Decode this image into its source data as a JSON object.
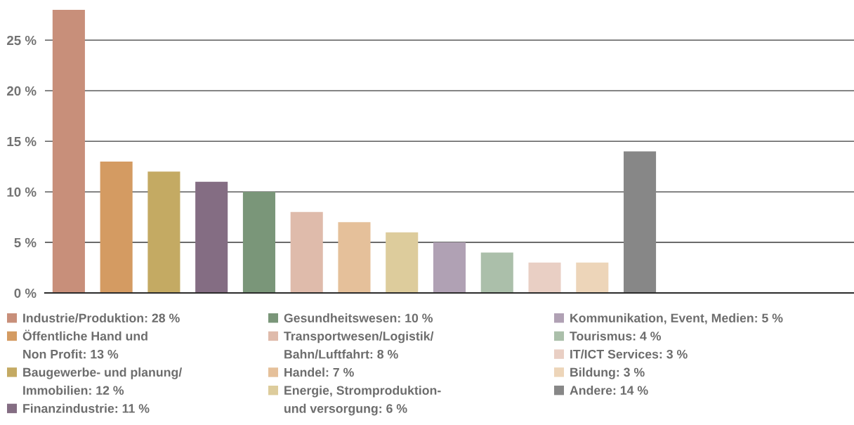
{
  "chart_data": {
    "type": "bar",
    "categories": [
      null,
      null,
      null,
      null,
      null,
      null,
      null,
      null,
      null,
      null,
      null,
      null,
      null,
      null,
      null,
      null,
      null
    ],
    "series": [
      {
        "name": "Industrie/Produktion: 28 %",
        "color": "#c88f7a",
        "values": [
          28,
          null,
          null,
          null,
          null,
          null,
          null,
          null,
          null,
          null,
          null,
          null,
          null,
          null,
          null,
          null,
          null
        ]
      },
      {
        "name": "Öffentliche Hand und\nNon Profit: 13 %",
        "color": "#d49b62",
        "values": [
          null,
          13,
          null,
          null,
          null,
          null,
          null,
          null,
          null,
          null,
          null,
          null,
          null,
          null,
          null,
          null,
          null
        ]
      },
      {
        "name": "Baugewerbe- und planung/\nImmobilien: 12 %",
        "color": "#c4aa63",
        "values": [
          null,
          null,
          12,
          null,
          null,
          null,
          null,
          null,
          null,
          null,
          null,
          null,
          null,
          null,
          null,
          null,
          null
        ]
      },
      {
        "name": "Finanzindustrie: 11 %",
        "color": "#846d83",
        "values": [
          null,
          null,
          null,
          11,
          null,
          null,
          null,
          null,
          null,
          null,
          null,
          null,
          null,
          null,
          null,
          null,
          null
        ]
      },
      {
        "name": "Gesundheitswesen: 10 %",
        "color": "#7a9679",
        "values": [
          null,
          null,
          null,
          null,
          10,
          null,
          null,
          null,
          null,
          null,
          null,
          null,
          null,
          null,
          null,
          null,
          null
        ]
      },
      {
        "name": "Transportwesen/Logistik/\nBahn/Luftfahrt: 8 %",
        "color": "#dfbbab",
        "values": [
          null,
          null,
          null,
          null,
          null,
          8,
          null,
          null,
          null,
          null,
          null,
          null,
          null,
          null,
          null,
          null,
          null
        ]
      },
      {
        "name": "Handel: 7 %",
        "color": "#e5c09a",
        "values": [
          null,
          null,
          null,
          null,
          null,
          null,
          7,
          null,
          null,
          null,
          null,
          null,
          null,
          null,
          null,
          null,
          null
        ]
      },
      {
        "name": "Energie, Stromproduktion-\nund versorgung: 6 %",
        "color": "#ddcc9c",
        "values": [
          null,
          null,
          null,
          null,
          null,
          null,
          null,
          6,
          null,
          null,
          null,
          null,
          null,
          null,
          null,
          null,
          null
        ]
      },
      {
        "name": "Kommunikation, Event, Medien: 5 %",
        "color": "#b0a1b4",
        "values": [
          null,
          null,
          null,
          null,
          null,
          null,
          null,
          null,
          5,
          null,
          null,
          null,
          null,
          null,
          null,
          null,
          null
        ]
      },
      {
        "name": "Tourismus: 4 %",
        "color": "#abbfaa",
        "values": [
          null,
          null,
          null,
          null,
          null,
          null,
          null,
          null,
          null,
          4,
          null,
          null,
          null,
          null,
          null,
          null,
          null
        ]
      },
      {
        "name": "IT/ICT Services: 3 %",
        "color": "#e9cfc4",
        "values": [
          null,
          null,
          null,
          null,
          null,
          null,
          null,
          null,
          null,
          null,
          3,
          null,
          null,
          null,
          null,
          null,
          null
        ]
      },
      {
        "name": "Bildung: 3 %",
        "color": "#edd5b9",
        "values": [
          null,
          null,
          null,
          null,
          null,
          null,
          null,
          null,
          null,
          null,
          null,
          3,
          null,
          null,
          null,
          null,
          null
        ]
      },
      {
        "name": "Andere: 14 %",
        "color": "#878787",
        "values": [
          null,
          null,
          null,
          null,
          null,
          null,
          null,
          null,
          null,
          null,
          null,
          null,
          14,
          null,
          null,
          null,
          null
        ]
      }
    ],
    "ylim": [
      0,
      28
    ],
    "yticks": [
      {
        "value": 0,
        "label": "0 %"
      },
      {
        "value": 5,
        "label": "5 %"
      },
      {
        "value": 10,
        "label": "10 %"
      },
      {
        "value": 15,
        "label": "15 %"
      },
      {
        "value": 20,
        "label": "20 %"
      },
      {
        "value": 25,
        "label": "25 %"
      }
    ],
    "grid": "y",
    "legend": "bottom",
    "tick_labels": "y"
  }
}
